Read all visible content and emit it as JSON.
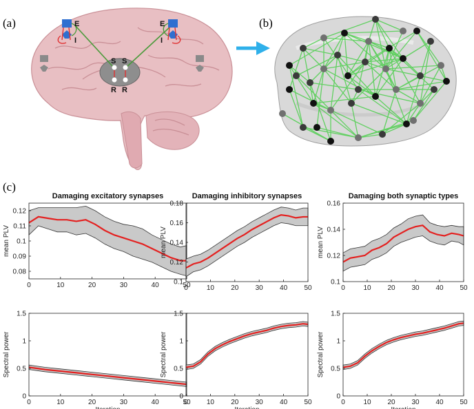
{
  "panels": {
    "a": "(a)",
    "b": "(b)",
    "c": "(c)"
  },
  "brain_labels": {
    "e": "E",
    "i": "I",
    "s": "S",
    "r": "R"
  },
  "colors": {
    "mean_line": "#e4201f",
    "band_fill": "#c9c9c9",
    "band_edge": "#333333",
    "connection": "#4ccf4c",
    "arrow": "#2fb0ea",
    "brain_tissue": "#e8bfc3",
    "excitatory": "#2f6fd0",
    "inhibitory": "#e03030"
  },
  "chart_data": [
    {
      "type": "line",
      "title": "Damaging excitatory synapses",
      "xlabel": "",
      "ylabel": "mean PLV",
      "xlim": [
        0,
        50
      ],
      "ylim": [
        0.075,
        0.125
      ],
      "xticks": [
        0,
        10,
        20,
        30,
        40,
        50
      ],
      "yticks": [
        0.08,
        0.09,
        0.1,
        0.11,
        0.12
      ],
      "ytick_labels": [
        "0.08",
        "0.09",
        "0.1",
        "0.11",
        "0.12"
      ],
      "x": [
        0,
        3,
        6,
        9,
        12,
        15,
        18,
        21,
        24,
        27,
        30,
        33,
        36,
        39,
        42,
        45,
        48,
        50
      ],
      "series": [
        {
          "values": [
            0.112,
            0.116,
            0.115,
            0.114,
            0.114,
            0.113,
            0.114,
            0.111,
            0.107,
            0.104,
            0.102,
            0.1,
            0.098,
            0.095,
            0.092,
            0.089,
            0.087,
            0.087
          ]
        }
      ],
      "band_halfwidth": [
        0.008,
        0.006,
        0.007,
        0.008,
        0.008,
        0.009,
        0.009,
        0.009,
        0.009,
        0.009,
        0.009,
        0.01,
        0.01,
        0.009,
        0.009,
        0.009,
        0.009,
        0.01
      ]
    },
    {
      "type": "line",
      "title": "Damaging inhibitory synapses",
      "xlabel": "",
      "ylabel": "mean PLV",
      "xlim": [
        0,
        50
      ],
      "ylim": [
        0.1,
        0.18
      ],
      "xticks": [
        0,
        10,
        20,
        30,
        40,
        50
      ],
      "yticks": [
        0.1,
        0.12,
        0.14,
        0.16,
        0.18
      ],
      "ytick_labels": [
        "0.1",
        "0.12",
        "0.14",
        "0.16",
        "0.18"
      ],
      "x": [
        0,
        3,
        6,
        9,
        12,
        15,
        18,
        21,
        24,
        27,
        30,
        33,
        36,
        39,
        42,
        45,
        48,
        50
      ],
      "series": [
        {
          "values": [
            0.114,
            0.118,
            0.12,
            0.124,
            0.129,
            0.134,
            0.139,
            0.144,
            0.148,
            0.153,
            0.157,
            0.161,
            0.165,
            0.168,
            0.167,
            0.165,
            0.166,
            0.166
          ]
        }
      ],
      "band_halfwidth": [
        0.009,
        0.008,
        0.008,
        0.008,
        0.008,
        0.008,
        0.008,
        0.008,
        0.008,
        0.008,
        0.008,
        0.008,
        0.008,
        0.008,
        0.008,
        0.008,
        0.009,
        0.009
      ]
    },
    {
      "type": "line",
      "title": "Damaging both synaptic types",
      "xlabel": "",
      "ylabel": "mean PLV",
      "xlim": [
        0,
        50
      ],
      "ylim": [
        0.1,
        0.16
      ],
      "xticks": [
        0,
        10,
        20,
        30,
        40,
        50
      ],
      "yticks": [
        0.1,
        0.12,
        0.14,
        0.16
      ],
      "ytick_labels": [
        "0.1",
        "0.12",
        "0.14",
        "0.16"
      ],
      "x": [
        0,
        3,
        6,
        9,
        12,
        15,
        18,
        21,
        24,
        27,
        30,
        33,
        36,
        39,
        42,
        45,
        48,
        50
      ],
      "series": [
        {
          "values": [
            0.115,
            0.118,
            0.119,
            0.12,
            0.124,
            0.126,
            0.129,
            0.134,
            0.137,
            0.14,
            0.142,
            0.143,
            0.138,
            0.136,
            0.135,
            0.137,
            0.136,
            0.135
          ]
        }
      ],
      "band_halfwidth": [
        0.007,
        0.007,
        0.007,
        0.007,
        0.007,
        0.007,
        0.007,
        0.007,
        0.007,
        0.008,
        0.008,
        0.008,
        0.007,
        0.007,
        0.007,
        0.006,
        0.006,
        0.007
      ]
    },
    {
      "type": "line",
      "title": "",
      "xlabel": "Iteration",
      "ylabel": "Spectral power",
      "xlim": [
        0,
        50
      ],
      "ylim": [
        0,
        1.5
      ],
      "xticks": [
        0,
        10,
        20,
        30,
        40,
        50
      ],
      "yticks": [
        0,
        0.5,
        1,
        1.5
      ],
      "ytick_labels": [
        "0",
        "0.5",
        "1",
        "1.5"
      ],
      "x": [
        0,
        5,
        10,
        15,
        20,
        25,
        30,
        35,
        40,
        45,
        50
      ],
      "series": [
        {
          "values": [
            0.52,
            0.48,
            0.45,
            0.42,
            0.39,
            0.36,
            0.33,
            0.3,
            0.27,
            0.24,
            0.21
          ]
        }
      ],
      "band_halfwidth": [
        0.04,
        0.04,
        0.04,
        0.04,
        0.04,
        0.04,
        0.04,
        0.04,
        0.04,
        0.04,
        0.04
      ]
    },
    {
      "type": "line",
      "title": "",
      "xlabel": "Iteration",
      "ylabel": "Spectral power",
      "xlim": [
        0,
        50
      ],
      "ylim": [
        0,
        1.5
      ],
      "xticks": [
        0,
        10,
        20,
        30,
        40,
        50
      ],
      "yticks": [
        0,
        0.5,
        1,
        1.5
      ],
      "ytick_labels": [
        "0",
        "0.5",
        "1",
        "1.5"
      ],
      "x": [
        0,
        3,
        6,
        9,
        12,
        15,
        18,
        21,
        24,
        27,
        30,
        33,
        36,
        39,
        42,
        45,
        48,
        50
      ],
      "series": [
        {
          "values": [
            0.52,
            0.54,
            0.62,
            0.76,
            0.86,
            0.93,
            0.99,
            1.04,
            1.09,
            1.13,
            1.16,
            1.19,
            1.23,
            1.26,
            1.28,
            1.29,
            1.31,
            1.3
          ]
        }
      ],
      "band_halfwidth": [
        0.04,
        0.04,
        0.04,
        0.04,
        0.04,
        0.04,
        0.04,
        0.04,
        0.04,
        0.04,
        0.04,
        0.04,
        0.04,
        0.04,
        0.04,
        0.04,
        0.04,
        0.04
      ]
    },
    {
      "type": "line",
      "title": "",
      "xlabel": "Iteration",
      "ylabel": "Spectral power",
      "xlim": [
        0,
        50
      ],
      "ylim": [
        0,
        1.5
      ],
      "xticks": [
        0,
        10,
        20,
        30,
        40,
        50
      ],
      "yticks": [
        0,
        0.5,
        1,
        1.5
      ],
      "ytick_labels": [
        "0",
        "0.5",
        "1",
        "1.5"
      ],
      "x": [
        0,
        3,
        6,
        9,
        12,
        15,
        18,
        21,
        24,
        27,
        30,
        33,
        36,
        39,
        42,
        45,
        48,
        50
      ],
      "series": [
        {
          "values": [
            0.52,
            0.54,
            0.6,
            0.72,
            0.82,
            0.9,
            0.97,
            1.02,
            1.06,
            1.09,
            1.12,
            1.14,
            1.17,
            1.2,
            1.23,
            1.27,
            1.31,
            1.32
          ]
        }
      ],
      "band_halfwidth": [
        0.04,
        0.04,
        0.04,
        0.04,
        0.04,
        0.04,
        0.04,
        0.04,
        0.04,
        0.04,
        0.04,
        0.04,
        0.04,
        0.04,
        0.04,
        0.04,
        0.04,
        0.04
      ]
    }
  ]
}
